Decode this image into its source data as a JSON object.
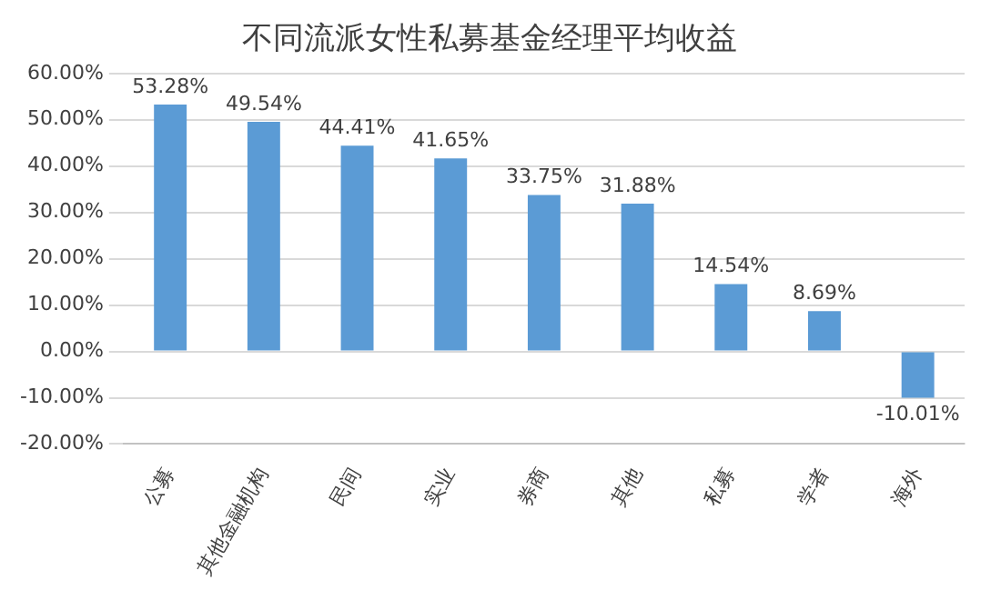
{
  "chart_data": {
    "type": "bar",
    "title": "不同流派女性私募基金经理平均收益",
    "categories": [
      "公募",
      "其他金融机构",
      "民间",
      "实业",
      "券商",
      "其他",
      "私募",
      "学者",
      "海外"
    ],
    "values": [
      53.28,
      49.54,
      44.41,
      41.65,
      33.75,
      31.88,
      14.54,
      8.69,
      -10.01
    ],
    "value_labels": [
      "53.28%",
      "49.54%",
      "44.41%",
      "41.65%",
      "33.75%",
      "31.88%",
      "14.54%",
      "8.69%",
      "-10.01%"
    ],
    "color": "#5b9bd5",
    "ylim": [
      -20,
      60
    ],
    "yticks": [
      {
        "value": -20,
        "label": "-20.00%"
      },
      {
        "value": -10,
        "label": "-10.00%"
      },
      {
        "value": 0,
        "label": "0.00%"
      },
      {
        "value": 10,
        "label": "10.00%"
      },
      {
        "value": 20,
        "label": "20.00%"
      },
      {
        "value": 30,
        "label": "30.00%"
      },
      {
        "value": 40,
        "label": "40.00%"
      },
      {
        "value": 50,
        "label": "50.00%"
      },
      {
        "value": 60,
        "label": "60.00%"
      }
    ],
    "grid": "y",
    "legend": false
  }
}
